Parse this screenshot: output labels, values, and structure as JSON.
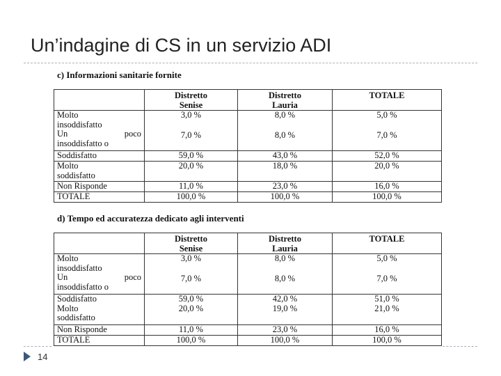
{
  "slide": {
    "title": "Un’indagine di CS in un servizio ADI",
    "page_number": "14"
  },
  "tables": [
    {
      "heading": "c) Informazioni sanitarie fornite",
      "columns": [
        "",
        "Distretto\nSenise",
        "Distretto\nLauria",
        "TOTALE"
      ],
      "rows": [
        {
          "label": "Molto\ninsoddisfatto",
          "values": [
            "3,0 %",
            "8,0 %",
            "5,0 %"
          ]
        },
        {
          "label_a": "Un",
          "label_b": "poco",
          "label_c": "insoddisfatto o",
          "values": [
            "7,0 %",
            "8,0 %",
            "7,0 %"
          ]
        },
        {
          "label": "Soddisfatto",
          "values": [
            "59,0 %",
            "43,0 %",
            "52,0 %"
          ]
        },
        {
          "label": "Molto\nsoddisfatto",
          "values": [
            "20,0 %",
            "18,0 %",
            "20,0 %"
          ]
        },
        {
          "label": "Non Risponde",
          "values": [
            "11,0 %",
            "23,0 %",
            "16,0 %"
          ]
        },
        {
          "label": "TOTALE",
          "values": [
            "100,0 %",
            "100,0 %",
            "100,0 %"
          ]
        }
      ]
    },
    {
      "heading": "d) Tempo ed accuratezza dedicato agli interventi",
      "columns": [
        "",
        "Distretto\nSenise",
        "Distretto\nLauria",
        "TOTALE"
      ],
      "rows": [
        {
          "label": "Molto\ninsoddisfatto",
          "values": [
            "3,0 %",
            "8,0 %",
            "5,0 %"
          ]
        },
        {
          "label_a": "Un",
          "label_b": "poco",
          "label_c": "insoddisfatto o",
          "values": [
            "7,0 %",
            "8,0 %",
            "7,0 %"
          ]
        },
        {
          "label": "Soddisfatto",
          "values": [
            "59,0 %",
            "42,0 %",
            "51,0 %"
          ]
        },
        {
          "label": "Molto\nsoddisfatto",
          "values": [
            "20,0 %",
            "19,0 %",
            "21,0 %"
          ]
        },
        {
          "label": "Non Risponde",
          "values": [
            "11,0 %",
            "23,0 %",
            "16,0 %"
          ]
        },
        {
          "label": "TOTALE",
          "values": [
            "100,0 %",
            "100,0 %",
            "100,0 %"
          ]
        }
      ]
    }
  ],
  "colors": {
    "title_text": "#222222",
    "rule": "#aab0b8",
    "footer_arrow": "#3c5a78",
    "table_border": "#333333"
  }
}
